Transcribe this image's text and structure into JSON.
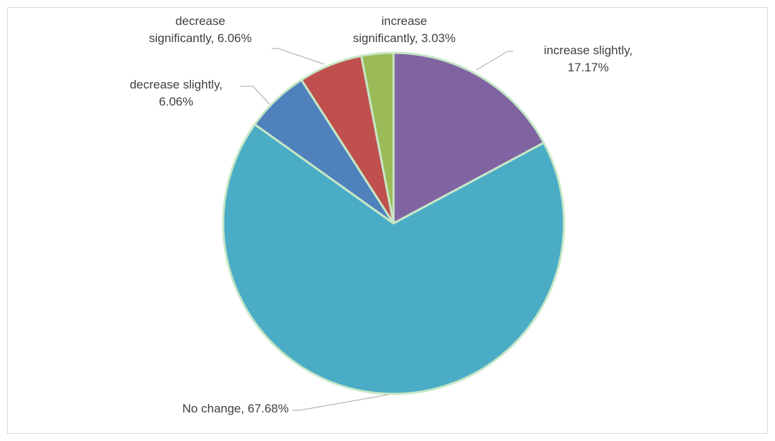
{
  "chart_data": {
    "type": "pie",
    "title": "",
    "slices": [
      {
        "label_lines": [
          "increase slightly,",
          "17.17%"
        ],
        "category": "increase slightly",
        "value": 17.17,
        "color": "#8064a2"
      },
      {
        "label_lines": [
          "No change, 67.68%"
        ],
        "category": "No change",
        "value": 67.68,
        "color": "#4bacc6"
      },
      {
        "label_lines": [
          "decrease slightly,",
          "6.06%"
        ],
        "category": "decrease slightly",
        "value": 6.06,
        "color": "#4f81bd"
      },
      {
        "label_lines": [
          "decrease",
          "significantly, 6.06%"
        ],
        "category": "decrease significantly",
        "value": 6.06,
        "color": "#c0504d"
      },
      {
        "label_lines": [
          "increase",
          "significantly, 3.03%"
        ],
        "category": "increase significantly",
        "value": 3.03,
        "color": "#9bbb59"
      }
    ],
    "start_angle_deg": 0,
    "direction": "clockwise",
    "slice_border_color": "#c6e7c6",
    "legend": "none",
    "data_labels": "outside with leader lines"
  }
}
